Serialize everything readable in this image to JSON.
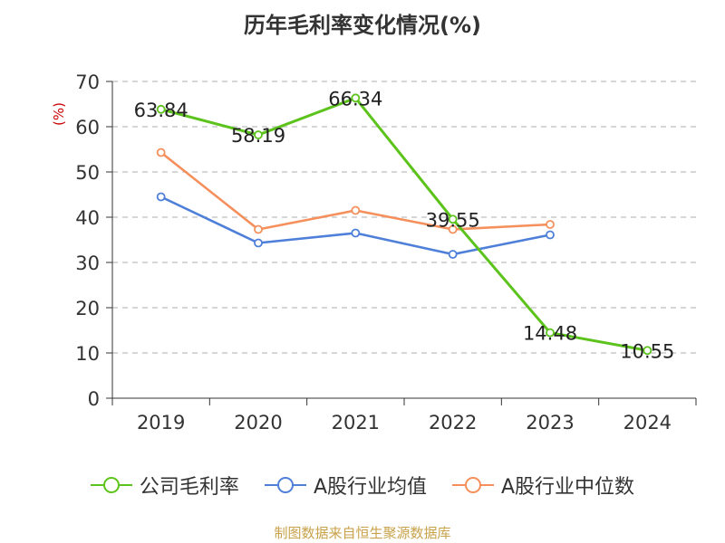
{
  "title": "历年毛利率变化情况(%)",
  "source": "制图数据来自恒生聚源数据库",
  "chart_data": {
    "type": "line",
    "title": "历年毛利率变化情况(%)",
    "ylabel": "(%)",
    "xlabel": "",
    "categories": [
      "2019",
      "2020",
      "2021",
      "2022",
      "2023",
      "2024"
    ],
    "ylim": [
      0,
      70
    ],
    "yticks": [
      0,
      10,
      20,
      30,
      40,
      50,
      60,
      70
    ],
    "grid": "horizontal dashed",
    "legend_position": "bottom",
    "series": [
      {
        "name": "公司毛利率",
        "color": "#5cc31c",
        "values": [
          63.84,
          58.19,
          66.34,
          39.55,
          14.48,
          10.55
        ],
        "labels": [
          "63.84",
          "58.19",
          "66.34",
          "39.55",
          "14.48",
          "10.55"
        ]
      },
      {
        "name": "A股行业均值",
        "color": "#4e7fd9",
        "values": [
          44.5,
          34.3,
          36.5,
          31.8,
          36.1,
          null
        ]
      },
      {
        "name": "A股行业中位数",
        "color": "#f58f5b",
        "values": [
          54.3,
          37.3,
          41.5,
          37.3,
          38.4,
          null
        ]
      }
    ]
  }
}
